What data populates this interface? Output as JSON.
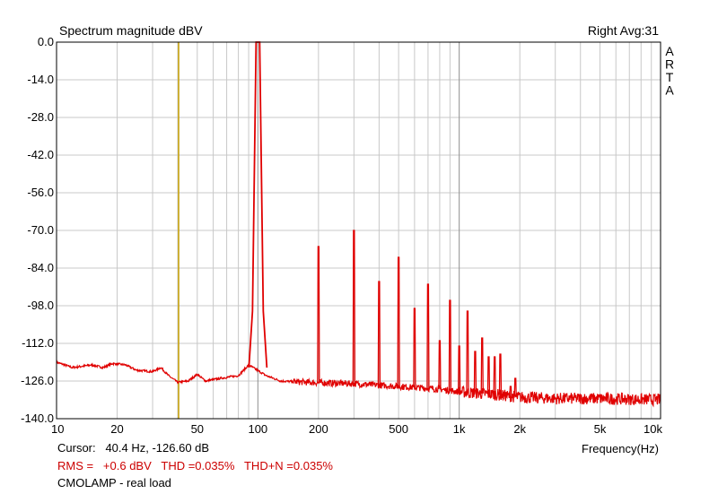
{
  "colors": {
    "trace": "#e00000",
    "cursor": "#c8a000",
    "grid": "#c8c8c8",
    "majorGrid": "#909090"
  },
  "chart_data": {
    "type": "line",
    "title": "Spectrum magnitude dBV",
    "channel_label": "Right  Avg:31",
    "brand": "ARTA",
    "xlabel": "Frequency(Hz)",
    "ylabel": "",
    "x_scale": "log",
    "xlim": [
      10,
      10000
    ],
    "ylim": [
      -140,
      0
    ],
    "grid": true,
    "y_ticks": [
      "0.0",
      "-14.0",
      "-28.0",
      "-42.0",
      "-56.0",
      "-70.0",
      "-84.0",
      "-98.0",
      "-112.0",
      "-126.0",
      "-140.0"
    ],
    "x_ticks": [
      {
        "value": 10,
        "label": "10"
      },
      {
        "value": 20,
        "label": "20"
      },
      {
        "value": 50,
        "label": "50"
      },
      {
        "value": 100,
        "label": "100"
      },
      {
        "value": 200,
        "label": "200"
      },
      {
        "value": 500,
        "label": "500"
      },
      {
        "value": 1000,
        "label": "1k"
      },
      {
        "value": 2000,
        "label": "2k"
      },
      {
        "value": 5000,
        "label": "5k"
      },
      {
        "value": 10000,
        "label": "10k"
      }
    ],
    "cursor": {
      "frequency_hz": 40.4,
      "level_db": -126.6
    },
    "noise_floor": [
      {
        "x": 10,
        "y": -119
      },
      {
        "x": 12,
        "y": -121
      },
      {
        "x": 15,
        "y": -120
      },
      {
        "x": 17,
        "y": -121
      },
      {
        "x": 19,
        "y": -119.5
      },
      {
        "x": 22,
        "y": -120
      },
      {
        "x": 25,
        "y": -122
      },
      {
        "x": 30,
        "y": -122.5
      },
      {
        "x": 33,
        "y": -121
      },
      {
        "x": 36,
        "y": -124
      },
      {
        "x": 40,
        "y": -126.5
      },
      {
        "x": 45,
        "y": -126
      },
      {
        "x": 50,
        "y": -123.5
      },
      {
        "x": 55,
        "y": -126
      },
      {
        "x": 65,
        "y": -125
      },
      {
        "x": 80,
        "y": -124
      },
      {
        "x": 90,
        "y": -120
      },
      {
        "x": 110,
        "y": -124
      },
      {
        "x": 130,
        "y": -126
      },
      {
        "x": 180,
        "y": -126.5
      },
      {
        "x": 300,
        "y": -127
      },
      {
        "x": 500,
        "y": -128
      },
      {
        "x": 800,
        "y": -129
      },
      {
        "x": 1000,
        "y": -130
      },
      {
        "x": 1500,
        "y": -131
      },
      {
        "x": 2000,
        "y": -132
      },
      {
        "x": 3000,
        "y": -132.5
      },
      {
        "x": 5000,
        "y": -132.5
      },
      {
        "x": 10000,
        "y": -133
      }
    ],
    "harmonics": [
      {
        "x": 100,
        "y": 0
      },
      {
        "x": 200,
        "y": -76
      },
      {
        "x": 300,
        "y": -70
      },
      {
        "x": 400,
        "y": -89
      },
      {
        "x": 500,
        "y": -80
      },
      {
        "x": 600,
        "y": -99
      },
      {
        "x": 700,
        "y": -90
      },
      {
        "x": 800,
        "y": -111
      },
      {
        "x": 900,
        "y": -96
      },
      {
        "x": 1000,
        "y": -113
      },
      {
        "x": 1100,
        "y": -100
      },
      {
        "x": 1200,
        "y": -115
      },
      {
        "x": 1300,
        "y": -110
      },
      {
        "x": 1400,
        "y": -117
      },
      {
        "x": 1500,
        "y": -117
      },
      {
        "x": 1600,
        "y": -116
      },
      {
        "x": 1800,
        "y": -128
      },
      {
        "x": 1900,
        "y": -125
      }
    ]
  },
  "info": {
    "cursor_text": "Cursor:   40.4 Hz, -126.60 dB",
    "stats_text": "RMS =   +0.6 dBV   THD =0.035%   THD+N =0.035%",
    "note_text": "CMOLAMP - real load"
  }
}
